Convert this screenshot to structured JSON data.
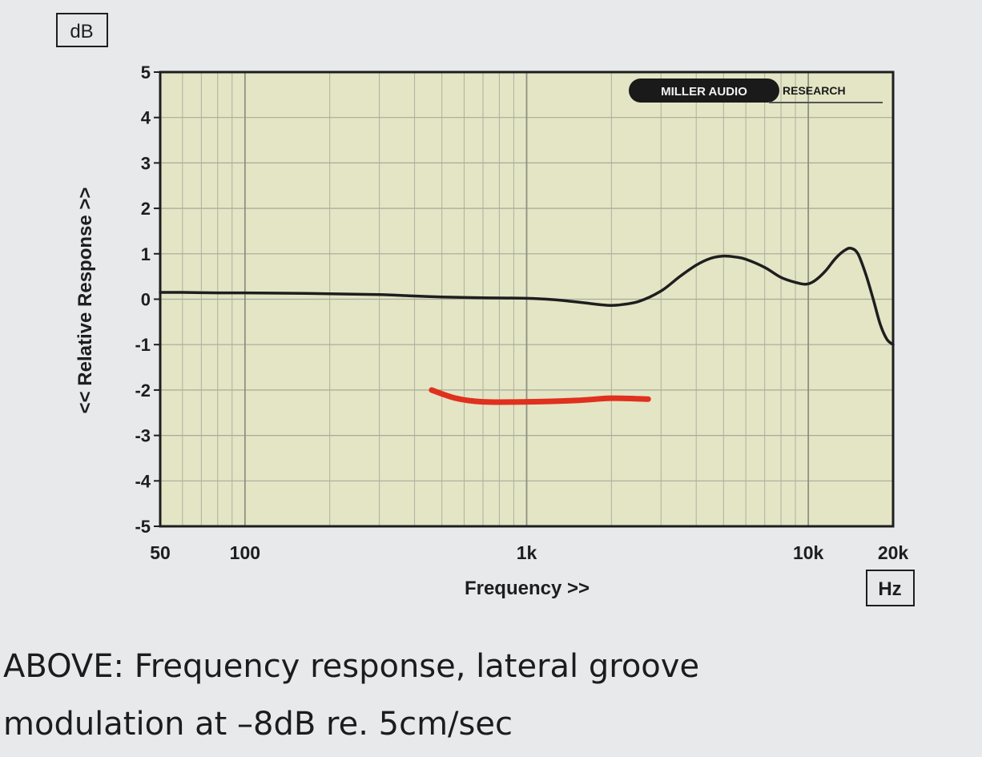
{
  "chart_data": {
    "type": "line",
    "title": "",
    "xlabel": "Frequency >>",
    "ylabel": "<< Relative Response >>",
    "y_unit": "dB",
    "x_unit": "Hz",
    "x_scale": "log",
    "xlim": [
      50,
      20000
    ],
    "ylim": [
      -5,
      5
    ],
    "x_ticks": [
      {
        "value": 50,
        "label": "50"
      },
      {
        "value": 100,
        "label": "100"
      },
      {
        "value": 1000,
        "label": "1k"
      },
      {
        "value": 10000,
        "label": "10k"
      },
      {
        "value": 20000,
        "label": "20k"
      }
    ],
    "y_ticks": [
      {
        "value": 5,
        "label": "5"
      },
      {
        "value": 4,
        "label": "4"
      },
      {
        "value": 3,
        "label": "3"
      },
      {
        "value": 2,
        "label": "2"
      },
      {
        "value": 1,
        "label": "1"
      },
      {
        "value": 0,
        "label": "0"
      },
      {
        "value": -1,
        "label": "-1"
      },
      {
        "value": -2,
        "label": "-2"
      },
      {
        "value": -3,
        "label": "-3"
      },
      {
        "value": -4,
        "label": "-4"
      },
      {
        "value": -5,
        "label": "-5"
      }
    ],
    "grid": true,
    "series": [
      {
        "color": "#1e1e1e",
        "points": [
          [
            50,
            0.15
          ],
          [
            60,
            0.15
          ],
          [
            80,
            0.14
          ],
          [
            100,
            0.14
          ],
          [
            150,
            0.13
          ],
          [
            200,
            0.12
          ],
          [
            300,
            0.1
          ],
          [
            400,
            0.07
          ],
          [
            500,
            0.05
          ],
          [
            700,
            0.03
          ],
          [
            1000,
            0.02
          ],
          [
            1300,
            -0.02
          ],
          [
            1600,
            -0.08
          ],
          [
            1900,
            -0.13
          ],
          [
            2100,
            -0.13
          ],
          [
            2500,
            -0.05
          ],
          [
            3000,
            0.18
          ],
          [
            3500,
            0.5
          ],
          [
            4000,
            0.75
          ],
          [
            4500,
            0.9
          ],
          [
            5000,
            0.95
          ],
          [
            5500,
            0.93
          ],
          [
            6000,
            0.88
          ],
          [
            7000,
            0.7
          ],
          [
            8000,
            0.48
          ],
          [
            9000,
            0.37
          ],
          [
            9800,
            0.33
          ],
          [
            10500,
            0.4
          ],
          [
            11500,
            0.62
          ],
          [
            12500,
            0.9
          ],
          [
            13500,
            1.08
          ],
          [
            14200,
            1.12
          ],
          [
            15000,
            1.0
          ],
          [
            16000,
            0.55
          ],
          [
            17000,
            0.0
          ],
          [
            18000,
            -0.55
          ],
          [
            19000,
            -0.88
          ],
          [
            20000,
            -1.0
          ]
        ]
      }
    ],
    "annotation_stroke": {
      "color": "#e0301e",
      "points": [
        [
          460,
          -2.0
        ],
        [
          560,
          -2.18
        ],
        [
          700,
          -2.26
        ],
        [
          1000,
          -2.26
        ],
        [
          1500,
          -2.23
        ],
        [
          2000,
          -2.18
        ],
        [
          2700,
          -2.2
        ]
      ]
    },
    "logo": {
      "text_left": "MILLER AUDIO",
      "text_right": "RESEARCH"
    },
    "plot_background": "#e3e5c5"
  },
  "caption": {
    "line1": "ABOVE: Frequency response, lateral groove",
    "line2": "modulation at –8dB re. 5cm/sec"
  }
}
